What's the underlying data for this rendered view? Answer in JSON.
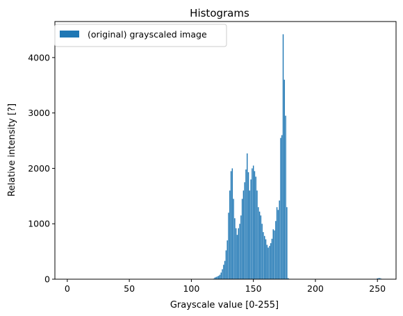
{
  "chart_data": {
    "type": "bar",
    "title": "Histograms",
    "xlabel": "Grayscale value [0-255]",
    "ylabel": "Relative intensity [?]",
    "xlim": [
      -10,
      265
    ],
    "ylim": [
      0,
      4650
    ],
    "xticks": [
      0,
      50,
      100,
      150,
      200,
      250
    ],
    "yticks": [
      0,
      1000,
      2000,
      3000,
      4000
    ],
    "grid": false,
    "legend_position": "top-left",
    "bar_color": "#1f77b4",
    "series": [
      {
        "name": "(original) grayscaled image",
        "x": [
          118,
          119,
          120,
          121,
          122,
          123,
          124,
          125,
          126,
          127,
          128,
          129,
          130,
          131,
          132,
          133,
          134,
          135,
          136,
          137,
          138,
          139,
          140,
          141,
          142,
          143,
          144,
          145,
          146,
          147,
          148,
          149,
          150,
          151,
          152,
          153,
          154,
          155,
          156,
          157,
          158,
          159,
          160,
          161,
          162,
          163,
          164,
          165,
          166,
          167,
          168,
          169,
          170,
          171,
          172,
          173,
          174,
          175,
          176,
          177,
          178,
          250,
          251,
          252,
          253
        ],
        "values": [
          10,
          30,
          40,
          50,
          60,
          80,
          120,
          180,
          260,
          330,
          520,
          700,
          1200,
          1600,
          1950,
          2000,
          1450,
          1100,
          920,
          800,
          920,
          1000,
          1150,
          1450,
          1600,
          1750,
          1980,
          2270,
          1930,
          1600,
          1800,
          2000,
          2050,
          1950,
          1850,
          1600,
          1300,
          1220,
          1150,
          1000,
          850,
          780,
          720,
          620,
          570,
          600,
          650,
          730,
          900,
          880,
          1050,
          1300,
          1250,
          1420,
          2550,
          2600,
          4420,
          3600,
          2950,
          1300,
          20,
          15,
          20,
          20,
          10
        ]
      }
    ]
  }
}
